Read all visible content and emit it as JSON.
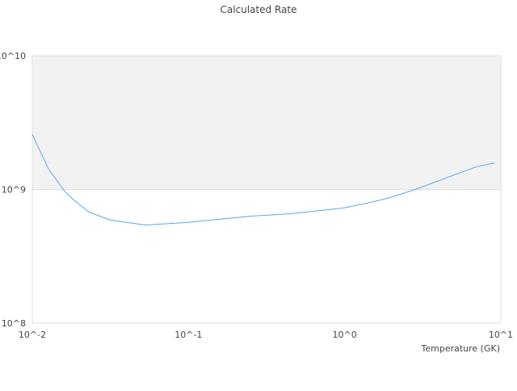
{
  "chart_data": {
    "type": "line",
    "title": "Calculated Rate",
    "xlabel": "Temperature (GK)",
    "ylabel": "",
    "x_scale": "log",
    "y_scale": "log",
    "xlim": [
      0.01,
      10
    ],
    "ylim": [
      100000000.0,
      10000000000.0
    ],
    "x_ticks": [
      {
        "v": 0.01,
        "label": "10^-2"
      },
      {
        "v": 0.1,
        "label": "10^-1"
      },
      {
        "v": 1,
        "label": "10^0"
      },
      {
        "v": 10,
        "label": "10^1"
      }
    ],
    "y_ticks": [
      {
        "v": 100000000.0,
        "label": "10^8"
      },
      {
        "v": 1000000000.0,
        "label": "10^9"
      },
      {
        "v": 10000000000.0,
        "label": "10^10"
      }
    ],
    "shaded_band": [
      1000000000.0,
      10000000000.0
    ],
    "colors": {
      "line": "#5aa6f0",
      "band": "#f2f2f2",
      "grid": "#dddddd"
    },
    "series": [
      {
        "x": [
          0.01,
          0.0127,
          0.0161,
          0.0181,
          0.023,
          0.0317,
          0.0529,
          0.0962,
          0.248,
          0.446,
          0.98,
          1.4,
          1.88,
          2.84,
          4.9,
          7.0,
          9.1
        ],
        "y": [
          2580000000.0,
          1420000000.0,
          970000000.0,
          850000000.0,
          678000000.0,
          589000000.0,
          542000000.0,
          565000000.0,
          631000000.0,
          658000000.0,
          726000000.0,
          790000000.0,
          858000000.0,
          1000000000.0,
          1270000000.0,
          1480000000.0,
          1580000000.0
        ]
      }
    ]
  }
}
